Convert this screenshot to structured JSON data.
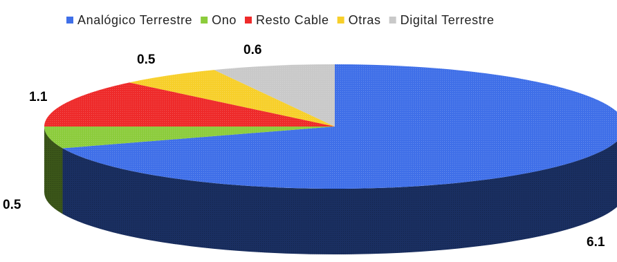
{
  "chart_data": {
    "type": "pie",
    "style": "3d",
    "legend_position": "top",
    "series": [
      {
        "name": "Analógico Terrestre",
        "value": 6.1,
        "label": "6.1",
        "color": "#3f6fe8"
      },
      {
        "name": "Ono",
        "value": 0.5,
        "label": "0.5",
        "color": "#8ccc3c"
      },
      {
        "name": "Resto Cable",
        "value": 1.1,
        "label": "1.1",
        "color": "#ee2a2a"
      },
      {
        "name": "Otras",
        "value": 0.5,
        "label": "0.5",
        "color": "#f7cf2a"
      },
      {
        "name": "Digital Terrestre",
        "value": 0.6,
        "label": "0.6",
        "color": "#c9c9c9"
      }
    ]
  }
}
